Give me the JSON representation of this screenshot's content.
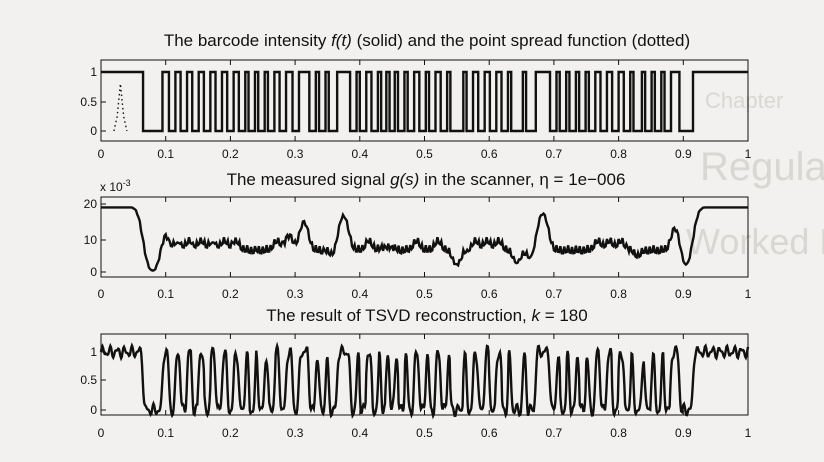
{
  "page": {
    "background_color": "#f2f1ef",
    "bleed_through_text": [
      "Chapter",
      "Regularization",
      "Worked Example"
    ]
  },
  "chart_data": [
    {
      "type": "line",
      "title": "The barcode intensity f(t) (solid) and the point spread function (dotted)",
      "title_parts": [
        "The barcode intensity ",
        "f(t)",
        " (solid) and the point spread function (dotted)"
      ],
      "xlim": [
        0,
        1
      ],
      "ylim": [
        0,
        1
      ],
      "x_ticks": [
        "0",
        "0.1",
        "0.2",
        "0.3",
        "0.4",
        "0.5",
        "0.6",
        "0.7",
        "0.8",
        "0.9",
        "1"
      ],
      "y_ticks": [
        "0",
        "0.5",
        "1"
      ],
      "y_tick_values": [
        0,
        0.5,
        1
      ],
      "grid": false,
      "series": [
        {
          "style": "solid",
          "color": "#111111",
          "segments": [
            [
              0.0,
              1
            ],
            [
              0.065,
              0
            ],
            [
              0.095,
              1
            ],
            [
              0.105,
              0
            ],
            [
              0.115,
              1
            ],
            [
              0.123,
              0
            ],
            [
              0.133,
              1
            ],
            [
              0.141,
              0
            ],
            [
              0.151,
              1
            ],
            [
              0.159,
              0
            ],
            [
              0.169,
              1
            ],
            [
              0.177,
              0
            ],
            [
              0.187,
              1
            ],
            [
              0.195,
              0
            ],
            [
              0.205,
              1
            ],
            [
              0.213,
              0
            ],
            [
              0.223,
              1
            ],
            [
              0.228,
              0
            ],
            [
              0.238,
              1
            ],
            [
              0.243,
              0
            ],
            [
              0.253,
              1
            ],
            [
              0.258,
              0
            ],
            [
              0.268,
              1
            ],
            [
              0.276,
              0
            ],
            [
              0.286,
              1
            ],
            [
              0.296,
              0
            ],
            [
              0.306,
              1
            ],
            [
              0.322,
              0
            ],
            [
              0.332,
              1
            ],
            [
              0.337,
              0
            ],
            [
              0.347,
              1
            ],
            [
              0.352,
              0
            ],
            [
              0.365,
              1
            ],
            [
              0.385,
              0
            ],
            [
              0.395,
              1
            ],
            [
              0.4,
              0
            ],
            [
              0.41,
              1
            ],
            [
              0.418,
              0
            ],
            [
              0.428,
              1
            ],
            [
              0.433,
              0
            ],
            [
              0.441,
              1
            ],
            [
              0.446,
              0
            ],
            [
              0.454,
              1
            ],
            [
              0.459,
              0
            ],
            [
              0.469,
              1
            ],
            [
              0.474,
              0
            ],
            [
              0.484,
              1
            ],
            [
              0.492,
              0
            ],
            [
              0.502,
              1
            ],
            [
              0.507,
              0
            ],
            [
              0.517,
              1
            ],
            [
              0.525,
              0
            ],
            [
              0.535,
              1
            ],
            [
              0.54,
              0
            ],
            [
              0.56,
              1
            ],
            [
              0.565,
              0
            ],
            [
              0.575,
              1
            ],
            [
              0.583,
              0
            ],
            [
              0.593,
              1
            ],
            [
              0.601,
              0
            ],
            [
              0.611,
              1
            ],
            [
              0.619,
              0
            ],
            [
              0.629,
              1
            ],
            [
              0.634,
              0
            ],
            [
              0.652,
              1
            ],
            [
              0.657,
              0
            ],
            [
              0.672,
              1
            ],
            [
              0.694,
              0
            ],
            [
              0.704,
              1
            ],
            [
              0.709,
              0
            ],
            [
              0.719,
              1
            ],
            [
              0.724,
              0
            ],
            [
              0.734,
              1
            ],
            [
              0.739,
              0
            ],
            [
              0.749,
              1
            ],
            [
              0.754,
              0
            ],
            [
              0.764,
              1
            ],
            [
              0.772,
              0
            ],
            [
              0.782,
              1
            ],
            [
              0.79,
              0
            ],
            [
              0.8,
              1
            ],
            [
              0.808,
              0
            ],
            [
              0.818,
              1
            ],
            [
              0.823,
              0
            ],
            [
              0.836,
              1
            ],
            [
              0.841,
              0
            ],
            [
              0.851,
              1
            ],
            [
              0.856,
              0
            ],
            [
              0.866,
              1
            ],
            [
              0.871,
              0
            ],
            [
              0.881,
              1
            ],
            [
              0.894,
              0
            ],
            [
              0.915,
              1
            ]
          ]
        },
        {
          "style": "dotted",
          "color": "#111111",
          "points": [
            [
              0.02,
              0.0
            ],
            [
              0.025,
              0.25
            ],
            [
              0.03,
              0.8
            ],
            [
              0.035,
              0.25
            ],
            [
              0.04,
              0.0
            ]
          ]
        }
      ]
    },
    {
      "type": "line",
      "title": "The measured signal g(s) in the scanner, η = 1e−006",
      "title_parts": [
        "The measured signal ",
        "g(s)",
        " in the scanner, η = 1e−006"
      ],
      "xlim": [
        0,
        1
      ],
      "ylim": [
        0,
        20
      ],
      "y_multiplier_base": "x 10",
      "y_multiplier_exp": "-3",
      "x_ticks": [
        "0",
        "0.1",
        "0.2",
        "0.3",
        "0.4",
        "0.5",
        "0.6",
        "0.7",
        "0.8",
        "0.9",
        "1"
      ],
      "y_ticks": [
        "0",
        "10",
        "20"
      ],
      "y_tick_values": [
        0,
        10,
        20
      ],
      "grid": false,
      "series": [
        {
          "style": "solid",
          "color": "#111111",
          "description_source": "blurred version of barcode"
        }
      ]
    },
    {
      "type": "line",
      "title": "The result of TSVD reconstruction, k = 180",
      "title_parts": [
        "The result of TSVD reconstruction, ",
        "k",
        " = 180"
      ],
      "xlim": [
        0,
        1
      ],
      "ylim": [
        0,
        1
      ],
      "x_ticks": [
        "0",
        "0.1",
        "0.2",
        "0.3",
        "0.4",
        "0.5",
        "0.6",
        "0.7",
        "0.8",
        "0.9",
        "1"
      ],
      "y_ticks": [
        "0",
        "0.5",
        "1"
      ],
      "y_tick_values": [
        0,
        0.5,
        1
      ],
      "grid": false,
      "series": [
        {
          "style": "solid",
          "color": "#111111",
          "description_source": "oscillatory reconstruction of barcode"
        }
      ]
    }
  ]
}
